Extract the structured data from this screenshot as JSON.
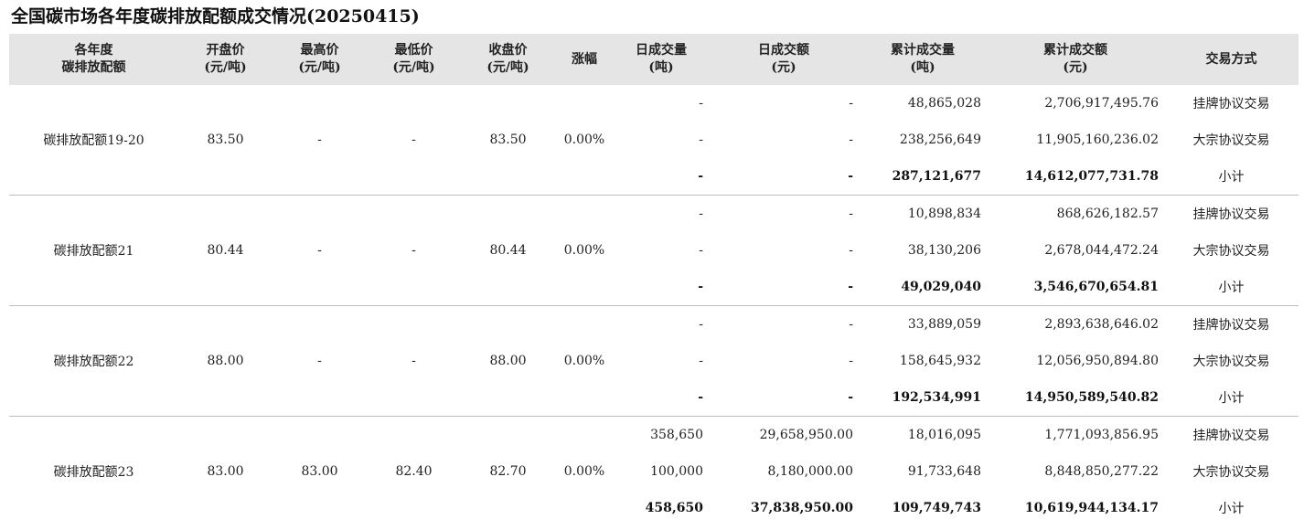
{
  "title": "全国碳市场各年度碳排放配额成交情况(20250415)",
  "headers": [
    {
      "l1": "各年度",
      "l2": "碳排放配额"
    },
    {
      "l1": "开盘价",
      "l2": "(元/吨)"
    },
    {
      "l1": "最高价",
      "l2": "(元/吨)"
    },
    {
      "l1": "最低价",
      "l2": "(元/吨)"
    },
    {
      "l1": "收盘价",
      "l2": "(元/吨)"
    },
    {
      "l1": "涨幅",
      "l2": ""
    },
    {
      "l1": "日成交量",
      "l2": "(吨)"
    },
    {
      "l1": "日成交额",
      "l2": "(元)"
    },
    {
      "l1": "累计成交量",
      "l2": "(吨)"
    },
    {
      "l1": "累计成交额",
      "l2": "(元)"
    },
    {
      "l1": "交易方式",
      "l2": ""
    }
  ],
  "groups": [
    {
      "name": "碳排放配额19-20",
      "open": "83.50",
      "high": "-",
      "low": "-",
      "close": "83.50",
      "change": "0.00%",
      "rows": [
        {
          "daily_vol": "-",
          "daily_amt": "-",
          "cum_vol": "48,865,028",
          "cum_amt": "2,706,917,495.76",
          "method": "挂牌协议交易"
        },
        {
          "daily_vol": "-",
          "daily_amt": "-",
          "cum_vol": "238,256,649",
          "cum_amt": "11,905,160,236.02",
          "method": "大宗协议交易"
        },
        {
          "daily_vol": "-",
          "daily_amt": "-",
          "cum_vol": "287,121,677",
          "cum_amt": "14,612,077,731.78",
          "method": "小计"
        }
      ]
    },
    {
      "name": "碳排放配额21",
      "open": "80.44",
      "high": "-",
      "low": "-",
      "close": "80.44",
      "change": "0.00%",
      "rows": [
        {
          "daily_vol": "-",
          "daily_amt": "-",
          "cum_vol": "10,898,834",
          "cum_amt": "868,626,182.57",
          "method": "挂牌协议交易"
        },
        {
          "daily_vol": "-",
          "daily_amt": "-",
          "cum_vol": "38,130,206",
          "cum_amt": "2,678,044,472.24",
          "method": "大宗协议交易"
        },
        {
          "daily_vol": "-",
          "daily_amt": "-",
          "cum_vol": "49,029,040",
          "cum_amt": "3,546,670,654.81",
          "method": "小计"
        }
      ]
    },
    {
      "name": "碳排放配额22",
      "open": "88.00",
      "high": "-",
      "low": "-",
      "close": "88.00",
      "change": "0.00%",
      "rows": [
        {
          "daily_vol": "-",
          "daily_amt": "-",
          "cum_vol": "33,889,059",
          "cum_amt": "2,893,638,646.02",
          "method": "挂牌协议交易"
        },
        {
          "daily_vol": "-",
          "daily_amt": "-",
          "cum_vol": "158,645,932",
          "cum_amt": "12,056,950,894.80",
          "method": "大宗协议交易"
        },
        {
          "daily_vol": "-",
          "daily_amt": "-",
          "cum_vol": "192,534,991",
          "cum_amt": "14,950,589,540.82",
          "method": "小计"
        }
      ]
    },
    {
      "name": "碳排放配额23",
      "open": "83.00",
      "high": "83.00",
      "low": "82.40",
      "close": "82.70",
      "change": "0.00%",
      "rows": [
        {
          "daily_vol": "358,650",
          "daily_amt": "29,658,950.00",
          "cum_vol": "18,016,095",
          "cum_amt": "1,771,093,856.95",
          "method": "挂牌协议交易"
        },
        {
          "daily_vol": "100,000",
          "daily_amt": "8,180,000.00",
          "cum_vol": "91,733,648",
          "cum_amt": "8,848,850,277.22",
          "method": "大宗协议交易"
        },
        {
          "daily_vol": "458,650",
          "daily_amt": "37,838,950.00",
          "cum_vol": "109,749,743",
          "cum_amt": "10,619,944,134.17",
          "method": "小计"
        }
      ]
    }
  ]
}
